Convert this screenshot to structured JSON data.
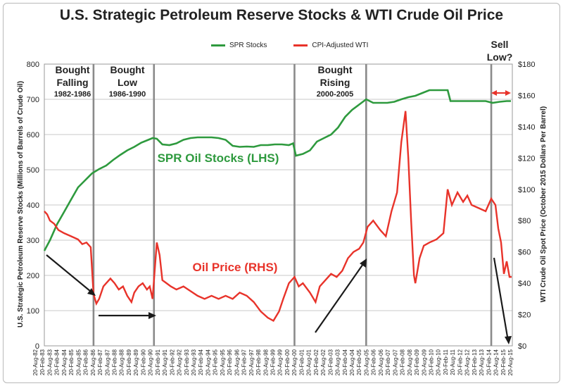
{
  "title": "U.S. Strategic Petroleum Reserve Stocks & WTI Crude Oil Price",
  "legend": {
    "spr_label": "SPR Stocks",
    "wti_label": "CPI-Adjusted WTI"
  },
  "colors": {
    "spr": "#2e9a3e",
    "wti": "#e8332a",
    "grid": "#c8c8c8",
    "divider": "#8a8a8a",
    "arrow": "#1a1a1a",
    "note": "#222222"
  },
  "axes": {
    "left_label": "U.S. Strategic Petroleum Reserve Stocks (Millions of Barrels of Crude Oil)",
    "right_label": "WTI Crude Oil Spot Price (October 2015 Dollars Per Barrel)",
    "left_ticks": [
      "0",
      "100",
      "200",
      "300",
      "400",
      "500",
      "600",
      "700",
      "800"
    ],
    "right_ticks": [
      "$0",
      "$20",
      "$40",
      "$60",
      "$80",
      "$100",
      "$120",
      "$140",
      "$160",
      "$180"
    ]
  },
  "annotations": {
    "bought_falling": {
      "line1": "Bought",
      "line2": "Falling",
      "line3": "1982-1986"
    },
    "bought_low": {
      "line1": "Bought",
      "line2": "Low",
      "line3": "1986-1990"
    },
    "bought_rising": {
      "line1": "Bought",
      "line2": "Rising",
      "line3": "2000-2005"
    },
    "sell_low": {
      "line1": "Sell",
      "line2": "Low?"
    },
    "spr_series_label": "SPR Oil Stocks (LHS)",
    "wti_series_label": "Oil Price (RHS)"
  },
  "x_tick_labels": [
    "20-Aug-82",
    "20-Feb-83",
    "20-Aug-83",
    "20-Feb-84",
    "20-Aug-84",
    "20-Feb-85",
    "20-Aug-85",
    "20-Feb-86",
    "20-Aug-86",
    "20-Feb-87",
    "20-Aug-87",
    "20-Feb-88",
    "20-Aug-88",
    "20-Feb-89",
    "20-Aug-89",
    "20-Feb-90",
    "20-Aug-90",
    "20-Feb-91",
    "20-Aug-91",
    "20-Feb-92",
    "20-Aug-92",
    "20-Feb-93",
    "20-Aug-93",
    "20-Feb-94",
    "20-Aug-94",
    "20-Feb-95",
    "20-Aug-95",
    "20-Feb-96",
    "20-Aug-96",
    "20-Feb-97",
    "20-Aug-97",
    "20-Feb-98",
    "20-Aug-98",
    "20-Feb-99",
    "20-Aug-99",
    "20-Feb-00",
    "20-Aug-00",
    "20-Feb-01",
    "20-Aug-01",
    "20-Feb-02",
    "20-Aug-02",
    "20-Feb-03",
    "20-Aug-03",
    "20-Feb-04",
    "20-Aug-04",
    "20-Feb-05",
    "20-Aug-05",
    "20-Feb-06",
    "20-Aug-06",
    "20-Feb-07",
    "20-Aug-07",
    "20-Feb-08",
    "20-Aug-08",
    "20-Feb-09",
    "20-Aug-09",
    "20-Feb-10",
    "20-Aug-10",
    "20-Feb-11",
    "20-Aug-11",
    "20-Feb-12",
    "20-Aug-12",
    "20-Feb-13",
    "20-Aug-13",
    "20-Feb-14",
    "20-Aug-14",
    "20-Feb-15",
    "20-Aug-15"
  ],
  "chart_data": {
    "type": "line",
    "title": "U.S. Strategic Petroleum Reserve Stocks & WTI Crude Oil Price",
    "xlabel": "",
    "ylabel_left": "U.S. Strategic Petroleum Reserve Stocks (Millions of Barrels of Crude Oil)",
    "ylabel_right": "WTI Crude Oil Spot Price (October 2015 Dollars Per Barrel)",
    "xlim": [
      1982.6,
      2015.9
    ],
    "ylim_left": [
      0,
      800
    ],
    "ylim_right": [
      0,
      180
    ],
    "grid": true,
    "legend_position": "top-center",
    "dividers": [
      1986.1,
      1990.4,
      2000.4,
      2005.5,
      2014.4
    ],
    "series": [
      {
        "name": "SPR Stocks",
        "axis": "left",
        "x": [
          1982.6,
          1983.0,
          1983.5,
          1984.0,
          1984.5,
          1985.0,
          1985.5,
          1986.0,
          1986.5,
          1987.0,
          1987.5,
          1988.0,
          1988.5,
          1989.0,
          1989.5,
          1990.0,
          1990.3,
          1990.6,
          1991.0,
          1991.5,
          1992.0,
          1992.5,
          1993.0,
          1993.5,
          1994.0,
          1994.5,
          1995.0,
          1995.5,
          1996.0,
          1996.5,
          1997.0,
          1997.5,
          1998.0,
          1998.5,
          1999.0,
          1999.5,
          2000.0,
          2000.3,
          2000.5,
          2001.0,
          2001.5,
          2002.0,
          2002.5,
          2003.0,
          2003.5,
          2004.0,
          2004.5,
          2005.0,
          2005.5,
          2006.0,
          2006.5,
          2007.0,
          2007.5,
          2008.0,
          2008.5,
          2009.0,
          2009.5,
          2010.0,
          2010.5,
          2011.0,
          2011.3,
          2011.5,
          2012.0,
          2012.5,
          2013.0,
          2013.5,
          2014.0,
          2014.5,
          2015.0,
          2015.5,
          2015.8
        ],
        "values": [
          270,
          300,
          345,
          380,
          415,
          450,
          470,
          490,
          502,
          512,
          528,
          542,
          555,
          565,
          577,
          585,
          590,
          588,
          572,
          570,
          575,
          585,
          590,
          592,
          592,
          592,
          590,
          585,
          568,
          565,
          566,
          565,
          570,
          570,
          572,
          572,
          570,
          575,
          540,
          545,
          555,
          580,
          590,
          600,
          620,
          650,
          670,
          685,
          700,
          690,
          690,
          690,
          693,
          700,
          706,
          710,
          718,
          726,
          726,
          726,
          726,
          695,
          695,
          695,
          695,
          695,
          695,
          690,
          693,
          695,
          695
        ]
      },
      {
        "name": "CPI-Adjusted WTI",
        "axis": "right",
        "x": [
          1982.6,
          1982.8,
          1983.0,
          1983.3,
          1983.6,
          1984.0,
          1984.5,
          1985.0,
          1985.3,
          1985.6,
          1985.9,
          1986.1,
          1986.3,
          1986.5,
          1986.8,
          1987.0,
          1987.3,
          1987.6,
          1987.9,
          1988.2,
          1988.5,
          1988.8,
          1989.0,
          1989.3,
          1989.6,
          1989.9,
          1990.1,
          1990.3,
          1990.6,
          1990.8,
          1991.0,
          1991.3,
          1991.6,
          1992.0,
          1992.5,
          1993.0,
          1993.5,
          1994.0,
          1994.5,
          1995.0,
          1995.5,
          1996.0,
          1996.5,
          1997.0,
          1997.5,
          1998.0,
          1998.5,
          1998.9,
          1999.3,
          1999.6,
          2000.0,
          2000.4,
          2000.7,
          2001.0,
          2001.5,
          2001.9,
          2002.2,
          2002.6,
          2003.0,
          2003.4,
          2003.8,
          2004.2,
          2004.6,
          2005.0,
          2005.3,
          2005.6,
          2006.0,
          2006.5,
          2006.9,
          2007.3,
          2007.7,
          2008.0,
          2008.3,
          2008.5,
          2008.7,
          2008.9,
          2009.0,
          2009.3,
          2009.6,
          2010.0,
          2010.5,
          2011.0,
          2011.3,
          2011.6,
          2012.0,
          2012.4,
          2012.7,
          2013.0,
          2013.5,
          2014.0,
          2014.4,
          2014.7,
          2014.9,
          2015.1,
          2015.3,
          2015.5,
          2015.7,
          2015.85
        ],
        "values": [
          86,
          84,
          80,
          78,
          74,
          72,
          70,
          68,
          65,
          66,
          63,
          33,
          27,
          30,
          38,
          40,
          43,
          40,
          36,
          38,
          32,
          28,
          34,
          38,
          40,
          36,
          38,
          30,
          66,
          58,
          42,
          40,
          38,
          36,
          38,
          35,
          32,
          30,
          32,
          30,
          32,
          30,
          34,
          32,
          28,
          22,
          18,
          16,
          22,
          30,
          40,
          44,
          38,
          40,
          34,
          28,
          38,
          42,
          46,
          44,
          48,
          56,
          60,
          62,
          66,
          76,
          80,
          74,
          70,
          86,
          98,
          130,
          150,
          120,
          80,
          45,
          40,
          56,
          64,
          66,
          68,
          72,
          100,
          90,
          98,
          92,
          96,
          90,
          88,
          86,
          94,
          90,
          75,
          66,
          46,
          54,
          44,
          44
        ]
      }
    ]
  }
}
